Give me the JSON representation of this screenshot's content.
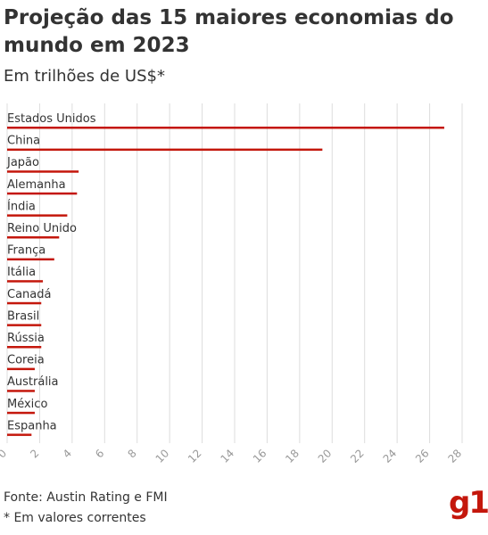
{
  "title": "Projeção das 15 maiores economias do mundo em 2023",
  "subtitle": "Em trilhões de US$*",
  "source": "Fonte: Austin Rating e FMI",
  "note": "* Em valores correntes",
  "logo": "g1",
  "colors": {
    "bar": "#c4170c",
    "grid": "#dddddd",
    "text": "#333333"
  },
  "chart_data": {
    "type": "bar",
    "orientation": "horizontal",
    "categories": [
      "Estados Unidos",
      "China",
      "Japão",
      "Alemanha",
      "Índia",
      "Reino Unido",
      "França",
      "Itália",
      "Canadá",
      "Brasil",
      "Rússia",
      "Coreia",
      "Austrália",
      "México",
      "Espanha"
    ],
    "values": [
      26.9,
      19.4,
      4.4,
      4.3,
      3.7,
      3.2,
      2.9,
      2.2,
      2.1,
      2.1,
      2.1,
      1.7,
      1.7,
      1.7,
      1.5
    ],
    "xlim": [
      0,
      28
    ],
    "xticks": [
      "0",
      "2",
      "4",
      "6",
      "8",
      "10",
      "12",
      "14",
      "16",
      "18",
      "20",
      "22",
      "24",
      "26",
      "28"
    ],
    "grid": true
  }
}
